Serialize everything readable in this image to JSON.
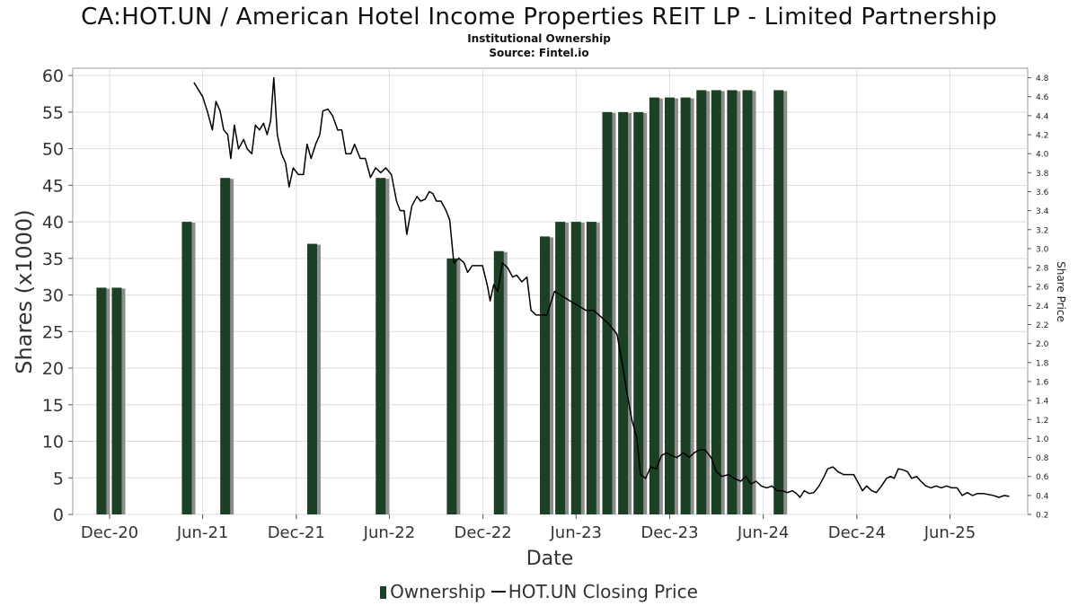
{
  "title": "CA:HOT.UN / American Hotel Income Properties REIT LP - Limited Partnership",
  "subtitle1": "Institutional Ownership",
  "subtitle2": "Source: Fintel.io",
  "legend": {
    "bars": "Ownership",
    "line": "HOT.UN Closing Price"
  },
  "colors": {
    "bar": "#1b4026",
    "bar_shadow": "#8c8c8c",
    "line": "#000000",
    "grid": "#dddddd"
  },
  "chart_data": {
    "type": "bar",
    "title": "CA:HOT.UN / American Hotel Income Properties REIT LP - Limited Partnership",
    "xlabel": "Date",
    "ylabel": "Shares (x1000)",
    "y2label": "Share Price",
    "ylim": [
      0,
      61
    ],
    "y2lim": [
      0.2,
      4.9
    ],
    "xlim": [
      "2020-09-20",
      "2025-10-31"
    ],
    "yticks": [
      0,
      5,
      10,
      15,
      20,
      25,
      30,
      35,
      40,
      45,
      50,
      55,
      60
    ],
    "y2ticks": [
      0.2,
      0.4,
      0.6,
      0.8,
      1.0,
      1.2,
      1.4,
      1.6,
      1.8,
      2.0,
      2.2,
      2.4,
      2.6,
      2.8,
      3.0,
      3.2,
      3.4,
      3.6,
      3.8,
      4.0,
      4.2,
      4.4,
      4.6,
      4.8
    ],
    "xticks": [
      {
        "label": "Dec-20",
        "date": "2020-12-01"
      },
      {
        "label": "Jun-21",
        "date": "2021-06-01"
      },
      {
        "label": "Dec-21",
        "date": "2021-12-01"
      },
      {
        "label": "Jun-22",
        "date": "2022-06-01"
      },
      {
        "label": "Dec-22",
        "date": "2022-12-01"
      },
      {
        "label": "Jun-23",
        "date": "2023-06-01"
      },
      {
        "label": "Dec-23",
        "date": "2023-12-01"
      },
      {
        "label": "Jun-24",
        "date": "2024-06-01"
      },
      {
        "label": "Dec-24",
        "date": "2024-12-01"
      },
      {
        "label": "Jun-25",
        "date": "2025-06-01"
      }
    ],
    "grid": true,
    "legend_position": "bottom",
    "ownership": [
      {
        "date": "2020-11-15",
        "value": 31
      },
      {
        "date": "2020-12-15",
        "value": 31
      },
      {
        "date": "2021-05-01",
        "value": 40
      },
      {
        "date": "2021-07-15",
        "value": 46
      },
      {
        "date": "2022-01-01",
        "value": 37
      },
      {
        "date": "2022-05-15",
        "value": 46
      },
      {
        "date": "2022-10-01",
        "value": 35
      },
      {
        "date": "2023-01-01",
        "value": 36
      },
      {
        "date": "2023-04-01",
        "value": 38
      },
      {
        "date": "2023-05-01",
        "value": 40
      },
      {
        "date": "2023-06-01",
        "value": 40
      },
      {
        "date": "2023-07-01",
        "value": 40
      },
      {
        "date": "2023-08-01",
        "value": 55
      },
      {
        "date": "2023-09-01",
        "value": 55
      },
      {
        "date": "2023-10-01",
        "value": 55
      },
      {
        "date": "2023-11-01",
        "value": 57
      },
      {
        "date": "2023-12-01",
        "value": 57
      },
      {
        "date": "2024-01-01",
        "value": 57
      },
      {
        "date": "2024-02-01",
        "value": 58
      },
      {
        "date": "2024-03-01",
        "value": 58
      },
      {
        "date": "2024-04-01",
        "value": 58
      },
      {
        "date": "2024-05-01",
        "value": 58
      },
      {
        "date": "2024-07-01",
        "value": 58
      }
    ],
    "price": [
      {
        "date": "2021-05-15",
        "value": 4.75
      },
      {
        "date": "2021-06-01",
        "value": 4.6
      },
      {
        "date": "2021-06-10",
        "value": 4.45
      },
      {
        "date": "2021-06-20",
        "value": 4.25
      },
      {
        "date": "2021-06-27",
        "value": 4.55
      },
      {
        "date": "2021-07-05",
        "value": 4.45
      },
      {
        "date": "2021-07-12",
        "value": 4.25
      },
      {
        "date": "2021-07-20",
        "value": 4.2
      },
      {
        "date": "2021-07-26",
        "value": 3.95
      },
      {
        "date": "2021-08-02",
        "value": 4.3
      },
      {
        "date": "2021-08-10",
        "value": 4.05
      },
      {
        "date": "2021-08-20",
        "value": 4.15
      },
      {
        "date": "2021-08-27",
        "value": 4.05
      },
      {
        "date": "2021-09-05",
        "value": 4.0
      },
      {
        "date": "2021-09-12",
        "value": 4.3
      },
      {
        "date": "2021-09-20",
        "value": 4.25
      },
      {
        "date": "2021-09-28",
        "value": 4.32
      },
      {
        "date": "2021-10-05",
        "value": 4.2
      },
      {
        "date": "2021-10-12",
        "value": 4.35
      },
      {
        "date": "2021-10-18",
        "value": 4.8
      },
      {
        "date": "2021-10-25",
        "value": 4.2
      },
      {
        "date": "2021-11-02",
        "value": 4.0
      },
      {
        "date": "2021-11-10",
        "value": 3.9
      },
      {
        "date": "2021-11-17",
        "value": 3.65
      },
      {
        "date": "2021-11-25",
        "value": 3.85
      },
      {
        "date": "2021-12-05",
        "value": 3.78
      },
      {
        "date": "2021-12-15",
        "value": 3.78
      },
      {
        "date": "2021-12-22",
        "value": 4.1
      },
      {
        "date": "2021-12-30",
        "value": 3.95
      },
      {
        "date": "2022-01-08",
        "value": 4.1
      },
      {
        "date": "2022-01-16",
        "value": 4.2
      },
      {
        "date": "2022-01-22",
        "value": 4.45
      },
      {
        "date": "2022-02-01",
        "value": 4.47
      },
      {
        "date": "2022-02-10",
        "value": 4.4
      },
      {
        "date": "2022-02-20",
        "value": 4.25
      },
      {
        "date": "2022-02-28",
        "value": 4.25
      },
      {
        "date": "2022-03-08",
        "value": 4.0
      },
      {
        "date": "2022-03-18",
        "value": 4.0
      },
      {
        "date": "2022-03-25",
        "value": 4.1
      },
      {
        "date": "2022-04-05",
        "value": 3.95
      },
      {
        "date": "2022-04-15",
        "value": 3.95
      },
      {
        "date": "2022-04-25",
        "value": 3.75
      },
      {
        "date": "2022-05-05",
        "value": 3.85
      },
      {
        "date": "2022-05-15",
        "value": 3.8
      },
      {
        "date": "2022-05-25",
        "value": 3.85
      },
      {
        "date": "2022-06-05",
        "value": 3.78
      },
      {
        "date": "2022-06-15",
        "value": 3.5
      },
      {
        "date": "2022-06-22",
        "value": 3.4
      },
      {
        "date": "2022-06-30",
        "value": 3.4
      },
      {
        "date": "2022-07-05",
        "value": 3.15
      },
      {
        "date": "2022-07-15",
        "value": 3.45
      },
      {
        "date": "2022-07-25",
        "value": 3.55
      },
      {
        "date": "2022-08-01",
        "value": 3.5
      },
      {
        "date": "2022-08-10",
        "value": 3.52
      },
      {
        "date": "2022-08-18",
        "value": 3.6
      },
      {
        "date": "2022-08-25",
        "value": 3.58
      },
      {
        "date": "2022-09-01",
        "value": 3.5
      },
      {
        "date": "2022-09-10",
        "value": 3.5
      },
      {
        "date": "2022-09-20",
        "value": 3.4
      },
      {
        "date": "2022-09-27",
        "value": 3.3
      },
      {
        "date": "2022-10-05",
        "value": 2.85
      },
      {
        "date": "2022-10-15",
        "value": 2.9
      },
      {
        "date": "2022-10-25",
        "value": 2.85
      },
      {
        "date": "2022-11-01",
        "value": 2.75
      },
      {
        "date": "2022-11-10",
        "value": 2.82
      },
      {
        "date": "2022-11-20",
        "value": 2.82
      },
      {
        "date": "2022-11-30",
        "value": 2.82
      },
      {
        "date": "2022-12-10",
        "value": 2.6
      },
      {
        "date": "2022-12-15",
        "value": 2.45
      },
      {
        "date": "2022-12-22",
        "value": 2.62
      },
      {
        "date": "2022-12-30",
        "value": 2.55
      },
      {
        "date": "2023-01-08",
        "value": 2.85
      },
      {
        "date": "2023-01-18",
        "value": 2.8
      },
      {
        "date": "2023-01-28",
        "value": 2.7
      },
      {
        "date": "2023-02-05",
        "value": 2.72
      },
      {
        "date": "2023-02-15",
        "value": 2.65
      },
      {
        "date": "2023-02-25",
        "value": 2.7
      },
      {
        "date": "2023-03-05",
        "value": 2.35
      },
      {
        "date": "2023-03-15",
        "value": 2.3
      },
      {
        "date": "2023-03-25",
        "value": 2.3
      },
      {
        "date": "2023-04-05",
        "value": 2.3
      },
      {
        "date": "2023-04-20",
        "value": 2.55
      },
      {
        "date": "2023-05-05",
        "value": 2.5
      },
      {
        "date": "2023-05-20",
        "value": 2.45
      },
      {
        "date": "2023-06-05",
        "value": 2.4
      },
      {
        "date": "2023-06-20",
        "value": 2.35
      },
      {
        "date": "2023-07-05",
        "value": 2.35
      },
      {
        "date": "2023-07-20",
        "value": 2.28
      },
      {
        "date": "2023-08-05",
        "value": 2.2
      },
      {
        "date": "2023-08-20",
        "value": 2.1
      },
      {
        "date": "2023-08-30",
        "value": 1.8
      },
      {
        "date": "2023-09-08",
        "value": 1.5
      },
      {
        "date": "2023-09-18",
        "value": 1.2
      },
      {
        "date": "2023-09-28",
        "value": 1.0
      },
      {
        "date": "2023-10-05",
        "value": 0.62
      },
      {
        "date": "2023-10-15",
        "value": 0.58
      },
      {
        "date": "2023-10-25",
        "value": 0.7
      },
      {
        "date": "2023-11-05",
        "value": 0.68
      },
      {
        "date": "2023-11-15",
        "value": 0.82
      },
      {
        "date": "2023-11-25",
        "value": 0.85
      },
      {
        "date": "2023-12-05",
        "value": 0.82
      },
      {
        "date": "2023-12-15",
        "value": 0.8
      },
      {
        "date": "2023-12-28",
        "value": 0.85
      },
      {
        "date": "2024-01-08",
        "value": 0.8
      },
      {
        "date": "2024-01-18",
        "value": 0.85
      },
      {
        "date": "2024-01-28",
        "value": 0.88
      },
      {
        "date": "2024-02-08",
        "value": 0.88
      },
      {
        "date": "2024-02-20",
        "value": 0.8
      },
      {
        "date": "2024-03-01",
        "value": 0.65
      },
      {
        "date": "2024-03-12",
        "value": 0.6
      },
      {
        "date": "2024-03-25",
        "value": 0.62
      },
      {
        "date": "2024-04-05",
        "value": 0.58
      },
      {
        "date": "2024-04-18",
        "value": 0.55
      },
      {
        "date": "2024-04-28",
        "value": 0.6
      },
      {
        "date": "2024-05-08",
        "value": 0.52
      },
      {
        "date": "2024-05-18",
        "value": 0.55
      },
      {
        "date": "2024-05-28",
        "value": 0.5
      },
      {
        "date": "2024-06-08",
        "value": 0.48
      },
      {
        "date": "2024-06-18",
        "value": 0.5
      },
      {
        "date": "2024-06-28",
        "value": 0.45
      },
      {
        "date": "2024-07-08",
        "value": 0.45
      },
      {
        "date": "2024-07-18",
        "value": 0.43
      },
      {
        "date": "2024-07-28",
        "value": 0.45
      },
      {
        "date": "2024-08-05",
        "value": 0.42
      },
      {
        "date": "2024-08-12",
        "value": 0.38
      },
      {
        "date": "2024-08-20",
        "value": 0.45
      },
      {
        "date": "2024-08-30",
        "value": 0.42
      },
      {
        "date": "2024-09-08",
        "value": 0.43
      },
      {
        "date": "2024-09-18",
        "value": 0.5
      },
      {
        "date": "2024-09-28",
        "value": 0.6
      },
      {
        "date": "2024-10-05",
        "value": 0.68
      },
      {
        "date": "2024-10-15",
        "value": 0.7
      },
      {
        "date": "2024-10-25",
        "value": 0.65
      },
      {
        "date": "2024-11-05",
        "value": 0.62
      },
      {
        "date": "2024-11-15",
        "value": 0.62
      },
      {
        "date": "2024-11-25",
        "value": 0.62
      },
      {
        "date": "2024-12-05",
        "value": 0.52
      },
      {
        "date": "2024-12-12",
        "value": 0.45
      },
      {
        "date": "2024-12-20",
        "value": 0.5
      },
      {
        "date": "2024-12-30",
        "value": 0.45
      },
      {
        "date": "2025-01-08",
        "value": 0.43
      },
      {
        "date": "2025-01-18",
        "value": 0.5
      },
      {
        "date": "2025-01-28",
        "value": 0.58
      },
      {
        "date": "2025-02-05",
        "value": 0.6
      },
      {
        "date": "2025-02-12",
        "value": 0.58
      },
      {
        "date": "2025-02-20",
        "value": 0.68
      },
      {
        "date": "2025-03-01",
        "value": 0.67
      },
      {
        "date": "2025-03-10",
        "value": 0.65
      },
      {
        "date": "2025-03-18",
        "value": 0.58
      },
      {
        "date": "2025-03-28",
        "value": 0.6
      },
      {
        "date": "2025-04-05",
        "value": 0.55
      },
      {
        "date": "2025-04-15",
        "value": 0.5
      },
      {
        "date": "2025-04-25",
        "value": 0.48
      },
      {
        "date": "2025-05-05",
        "value": 0.5
      },
      {
        "date": "2025-05-15",
        "value": 0.48
      },
      {
        "date": "2025-05-25",
        "value": 0.5
      },
      {
        "date": "2025-06-05",
        "value": 0.48
      },
      {
        "date": "2025-06-15",
        "value": 0.48
      },
      {
        "date": "2025-06-25",
        "value": 0.4
      },
      {
        "date": "2025-07-05",
        "value": 0.43
      },
      {
        "date": "2025-07-15",
        "value": 0.4
      },
      {
        "date": "2025-07-25",
        "value": 0.42
      },
      {
        "date": "2025-08-05",
        "value": 0.42
      },
      {
        "date": "2025-08-15",
        "value": 0.41
      },
      {
        "date": "2025-08-25",
        "value": 0.4
      },
      {
        "date": "2025-09-05",
        "value": 0.38
      },
      {
        "date": "2025-09-15",
        "value": 0.4
      },
      {
        "date": "2025-09-25",
        "value": 0.39
      }
    ]
  }
}
